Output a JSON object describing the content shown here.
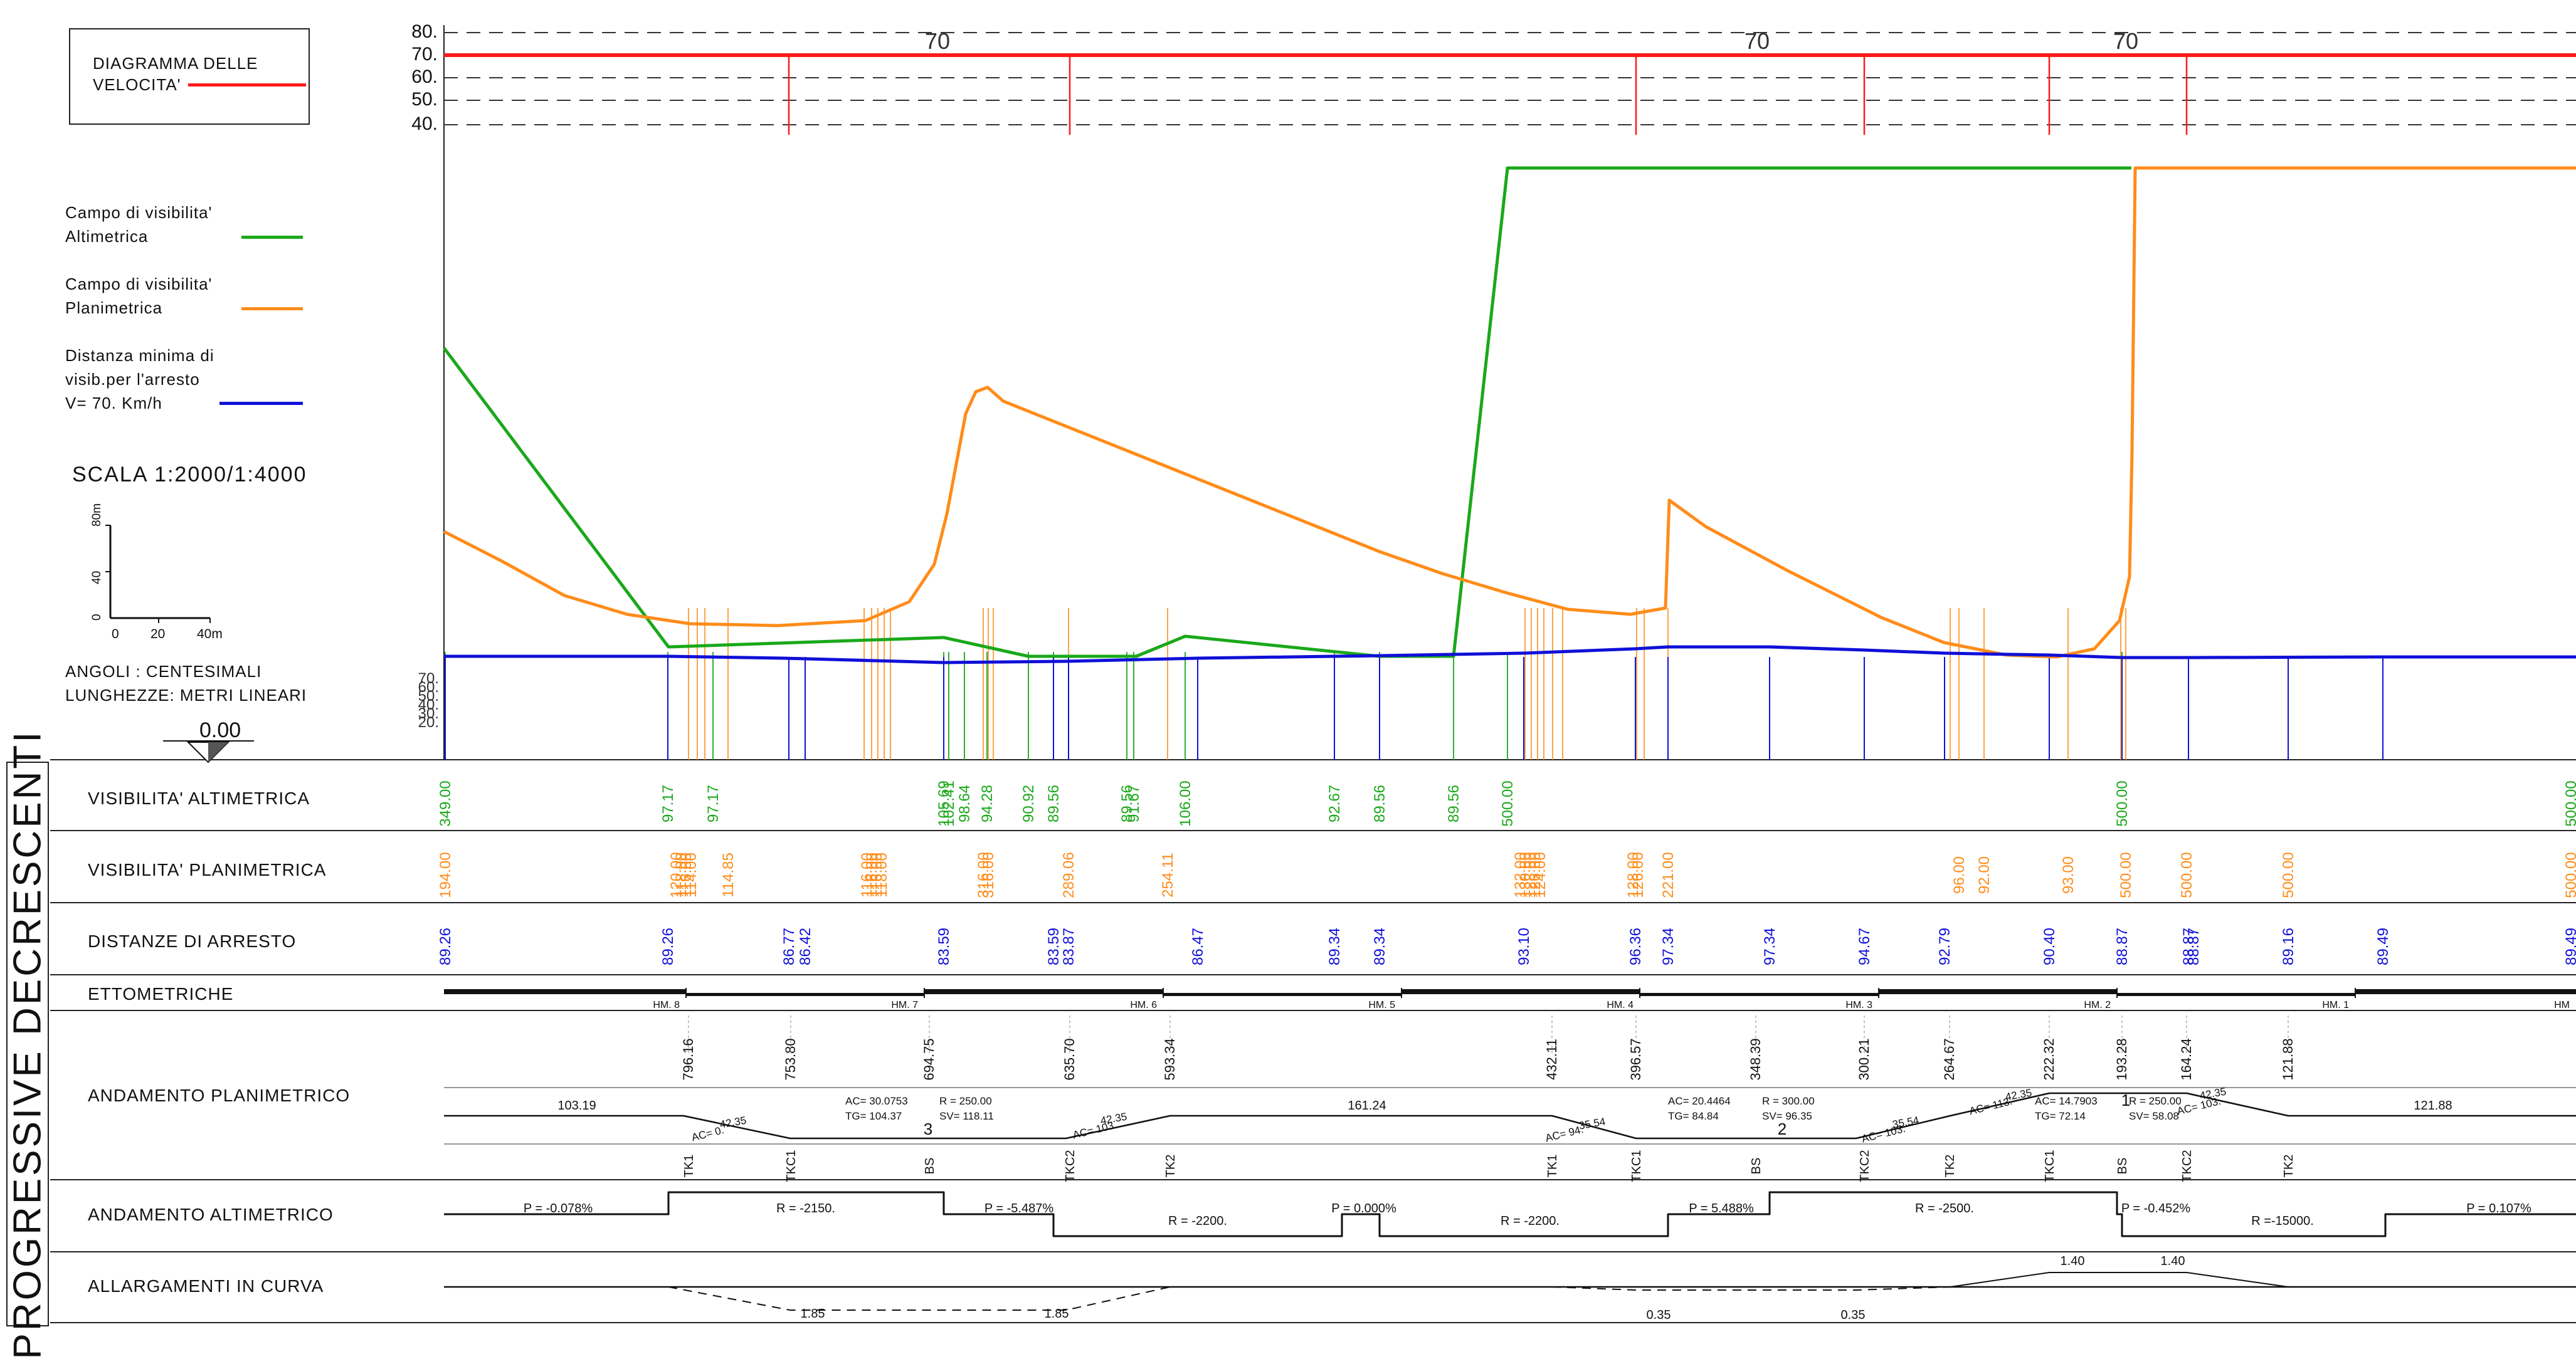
{
  "legend": {
    "speed_title_1": "DIAGRAMMA DELLE",
    "speed_title_2": "VELOCITA'",
    "alt_1": "Campo di visibilita'",
    "alt_2": "Altimetrica",
    "plan_1": "Campo di visibilita'",
    "plan_2": "Planimetrica",
    "stop_1": "Distanza minima di",
    "stop_2": "visib.per l'arresto",
    "stop_3": "V= 70.  Km/h",
    "scale": "SCALA  1:2000/1:4000",
    "scale_v": [
      "80m",
      "40",
      "0"
    ],
    "scale_h": [
      "0",
      "20",
      "40m"
    ],
    "angles": "ANGOLI      : CENTESIMALI",
    "lengths": "LUNGHEZZE: METRI LINEARI",
    "datum": "0.00"
  },
  "colors": {
    "speed": "#ff1a1a",
    "altimetric": "#1aa81a",
    "planimetric": "#ff8c1a",
    "stopping": "#1010d8",
    "line": "#111111"
  },
  "vertical_title": "PROGRESSIVE  DECRESCENTI",
  "speed_diagram": {
    "y_ticks": [
      "80.",
      "70.",
      "60.",
      "50.",
      "40."
    ],
    "speed_labels": [
      "70",
      "70",
      "70"
    ]
  },
  "visibility_ticks": [
    "70.",
    "60.",
    "50.",
    "40.",
    "30.",
    "20."
  ],
  "rows": {
    "alt_title": "VISIBILITA' ALTIMETRICA",
    "plan_title": "VISIBILITA' PLANIMETRICA",
    "stop_title": "DISTANZE DI ARRESTO",
    "etto_title": "ETTOMETRICHE",
    "plani_title": "ANDAMENTO PLANIMETRICO",
    "alti_title": "ANDAMENTO ALTIMETRICO",
    "allarg_title": "ALLARGAMENTI IN CURVA"
  },
  "alt_values": [
    "349.00",
    "97.17",
    "97.17",
    "105.69",
    "102.41",
    "98.64",
    "94.28",
    "90.92",
    "89.56",
    "89.56",
    "91.67",
    "106.00",
    "92.67",
    "89.56",
    "89.56",
    "500.00",
    "500.00",
    "500.00"
  ],
  "plan_values": [
    "194.00",
    "120.00",
    "118.00",
    "116.00",
    "114.00",
    "114.85",
    "116.00",
    "116.00",
    "116.00",
    "118.00",
    "316.00",
    "316.00",
    "289.06",
    "254.11",
    "132.00",
    "130.00",
    "128.00",
    "126.00",
    "124.00",
    "128.00",
    "126.00",
    "221.00",
    "96.00",
    "92.00",
    "93.00",
    "500.00",
    "500.00",
    "500.00",
    "500.00"
  ],
  "stop_values": [
    "89.26",
    "89.26",
    "86.77",
    "86.42",
    "83.59",
    "83.59",
    "83.87",
    "86.47",
    "89.34",
    "89.34",
    "93.10",
    "96.36",
    "97.34",
    "97.34",
    "94.67",
    "92.79",
    "90.40",
    "88.87",
    "88.87",
    "88.87",
    "89.16",
    "89.49",
    "89.49"
  ],
  "ettometriche": [
    "HM. 8",
    "HM. 7",
    "HM. 6",
    "HM. 5",
    "HM. 4",
    "HM. 3",
    "HM. 2",
    "HM. 1",
    "HM"
  ],
  "progressive": [
    "796.16",
    "753.80",
    "694.75",
    "635.70",
    "593.34",
    "432.11",
    "396.57",
    "348.39",
    "300.21",
    "264.67",
    "222.32",
    "193.28",
    "164.24",
    "121.88"
  ],
  "curve_points": [
    "TK1",
    "TKC1",
    "BS",
    "TKC2",
    "TK2",
    "TK1",
    "TKC1",
    "BS",
    "TKC2",
    "TK2",
    "TKC1",
    "BS",
    "TKC2",
    "TK2"
  ],
  "plan_segments": [
    "103.19",
    "161.24",
    "121.88"
  ],
  "curve_3": {
    "n": "3",
    "ac": "AC= 30.0753",
    "r": "R  =   250.00",
    "tg": "TG=   104.37",
    "sv": "SV=   118.11"
  },
  "curve_2": {
    "n": "2",
    "ac": "AC= 20.4464",
    "r": "R  =   300.00",
    "tg": "TG=   84.84",
    "sv": "SV=   96.35"
  },
  "curve_1": {
    "n": "1",
    "ac": "AC= 14.7903",
    "r": "R  =   250.00",
    "tg": "TG=   72.14",
    "sv": "SV=   58.08"
  },
  "clothoids": [
    "42.35",
    "AC= 0.",
    "42.35",
    "AC= 103.",
    "35.54",
    "AC= 94.",
    "35.54",
    "AC= 103.",
    "42.35",
    "AC= 113.",
    "42.35",
    "AC= 103."
  ],
  "alti_labels": [
    "P = -0.078%",
    "R = -2150.",
    "P = -5.487%",
    "R = -2200.",
    "P =  0.000%",
    "R = -2200.",
    "P =  5.488%",
    "R = -2500.",
    "P = -0.452%",
    "R =-15000.",
    "P =  0.107%"
  ],
  "allarg_labels": [
    "1.40",
    "1.40",
    "1.85",
    "1.85",
    "0.35",
    "0.35"
  ]
}
